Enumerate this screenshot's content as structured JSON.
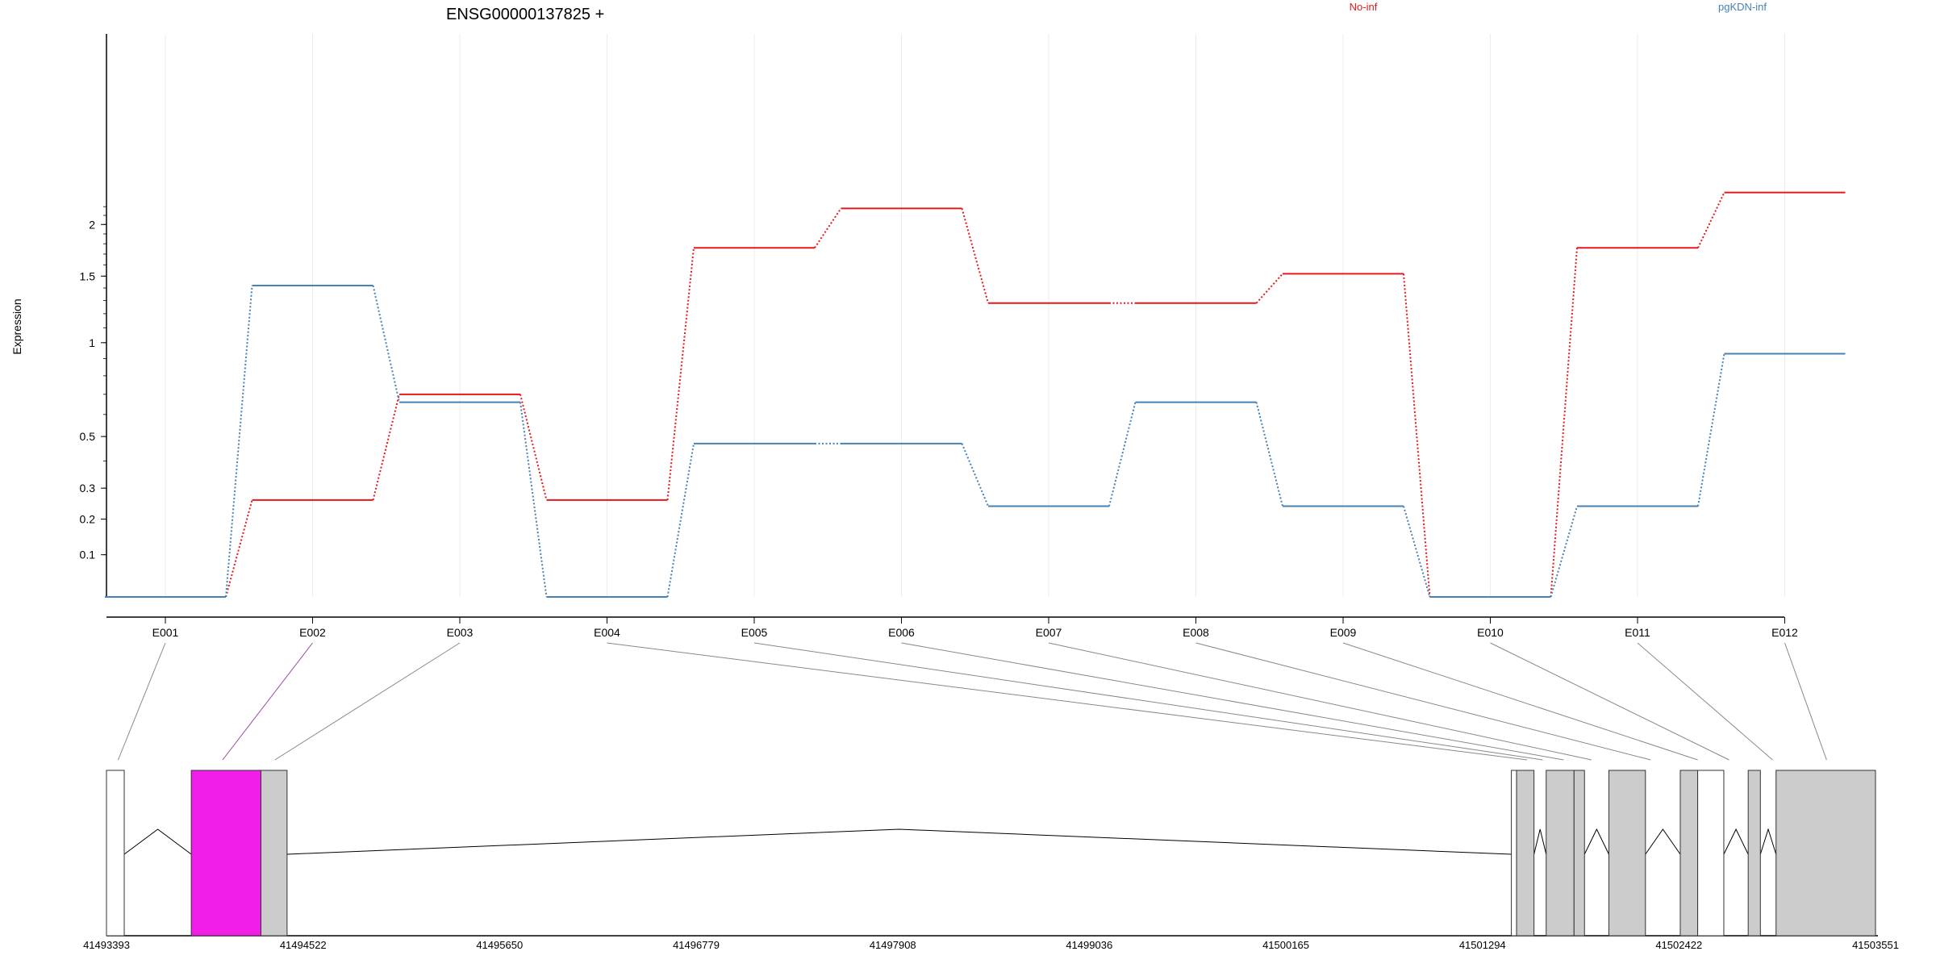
{
  "chart_data": {
    "type": "line",
    "title": "ENSG00000137825 +",
    "ylabel": "Expression",
    "y_ticks": [
      "0.1",
      "0.2",
      "0.3",
      "0.5",
      "1",
      "1.5",
      "2"
    ],
    "ylim": [
      0,
      2.3
    ],
    "grid": "vertical, light",
    "legend_placement": "top",
    "categories": [
      "E001",
      "E002",
      "E003",
      "E004",
      "E005",
      "E006",
      "E007",
      "E008",
      "E009",
      "E010",
      "E011",
      "E012"
    ],
    "series": [
      {
        "name": "No-inf",
        "color": "#e31a1c",
        "values": [
          0.0,
          0.26,
          0.7,
          0.26,
          1.76,
          2.18,
          1.28,
          1.28,
          1.52,
          0.0,
          1.76,
          2.37
        ]
      },
      {
        "name": "pgKDN-inf",
        "color": "#4682b4",
        "values": [
          0.0,
          1.42,
          0.66,
          0.0,
          0.47,
          0.47,
          0.24,
          0.66,
          0.24,
          0.0,
          0.24,
          0.93
        ]
      }
    ],
    "gene_model": {
      "coord_ticks": [
        "41493393",
        "41494522",
        "41495650",
        "41496779",
        "41497908",
        "41499036",
        "41500165",
        "41501294",
        "41502422",
        "41503551"
      ],
      "coord_range": [
        41493393,
        41503551
      ],
      "exon_fill": "#cccccc",
      "highlight_fill": "#f21de8",
      "connector_colors": {
        "default": "#888888",
        "highlight": "#9b4aa0"
      },
      "blocks": [
        {
          "start": 41493393,
          "end": 41493495,
          "fill": "white"
        },
        {
          "start": 41493880,
          "end": 41494280,
          "fill": "highlight"
        },
        {
          "start": 41494280,
          "end": 41494430,
          "fill": "exon"
        },
        {
          "start": 41501460,
          "end": 41501490,
          "fill": "white"
        },
        {
          "start": 41501490,
          "end": 41501590,
          "fill": "exon"
        },
        {
          "start": 41501660,
          "end": 41501820,
          "fill": "exon"
        },
        {
          "start": 41501820,
          "end": 41501880,
          "fill": "exon"
        },
        {
          "start": 41502020,
          "end": 41502230,
          "fill": "exon"
        },
        {
          "start": 41502430,
          "end": 41502530,
          "fill": "exon"
        },
        {
          "start": 41502530,
          "end": 41502680,
          "fill": "white"
        },
        {
          "start": 41502820,
          "end": 41502890,
          "fill": "exon"
        },
        {
          "start": 41502980,
          "end": 41503551,
          "fill": "exon"
        }
      ],
      "introns": [
        [
          41493495,
          41493880
        ],
        [
          41494430,
          41501460
        ],
        [
          41501590,
          41501660
        ],
        [
          41501880,
          41502020
        ],
        [
          41502230,
          41502430
        ],
        [
          41502680,
          41502820
        ],
        [
          41502890,
          41502980
        ]
      ],
      "exon_anchors": [
        41493460,
        41494060,
        41494360,
        41501550,
        41501640,
        41501760,
        41501920,
        41502260,
        41502530,
        41502710,
        41502960,
        41503270
      ],
      "highlighted_exon": "E002"
    }
  }
}
